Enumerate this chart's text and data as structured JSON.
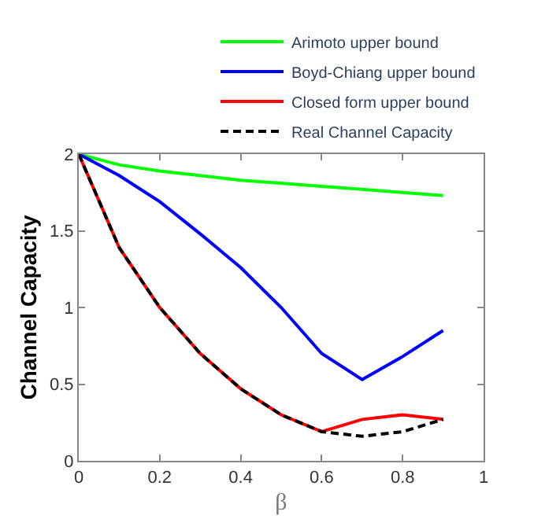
{
  "chart_data": {
    "type": "line",
    "xlabel": "β",
    "ylabel": "Channel Capacity",
    "x": [
      0,
      0.1,
      0.2,
      0.3,
      0.4,
      0.5,
      0.6,
      0.7,
      0.8,
      0.9
    ],
    "xlim": [
      0,
      1
    ],
    "xticks": [
      0,
      0.2,
      0.4,
      0.6,
      0.8,
      1
    ],
    "ylim": [
      0,
      2
    ],
    "yticks": [
      0,
      0.5,
      1,
      1.5,
      2
    ],
    "legend": "top right",
    "marker": "none",
    "series": [
      {
        "name": "Arimoto upper bound",
        "color": "#00ff00",
        "values": [
          2,
          1.93,
          1.89,
          1.86,
          1.83,
          1.81,
          1.79,
          1.77,
          1.75,
          1.73
        ]
      },
      {
        "name": "Boyd-Chiang upper bound",
        "color": "#0000ff",
        "values": [
          2,
          1.86,
          1.69,
          1.48,
          1.26,
          1.0,
          0.7,
          0.53,
          0.68,
          0.85
        ]
      },
      {
        "name": "Closed form upper bound",
        "color": "#ff0000",
        "values": [
          2,
          1.39,
          1.0,
          0.7,
          0.47,
          0.3,
          0.19,
          0.27,
          0.3,
          0.27
        ]
      },
      {
        "name": "Real Channel Capacity",
        "color": "#000000",
        "line_style": "dashed",
        "values": [
          2,
          1.39,
          1.0,
          0.7,
          0.47,
          0.3,
          0.19,
          0.16,
          0.19,
          0.27
        ]
      }
    ]
  }
}
